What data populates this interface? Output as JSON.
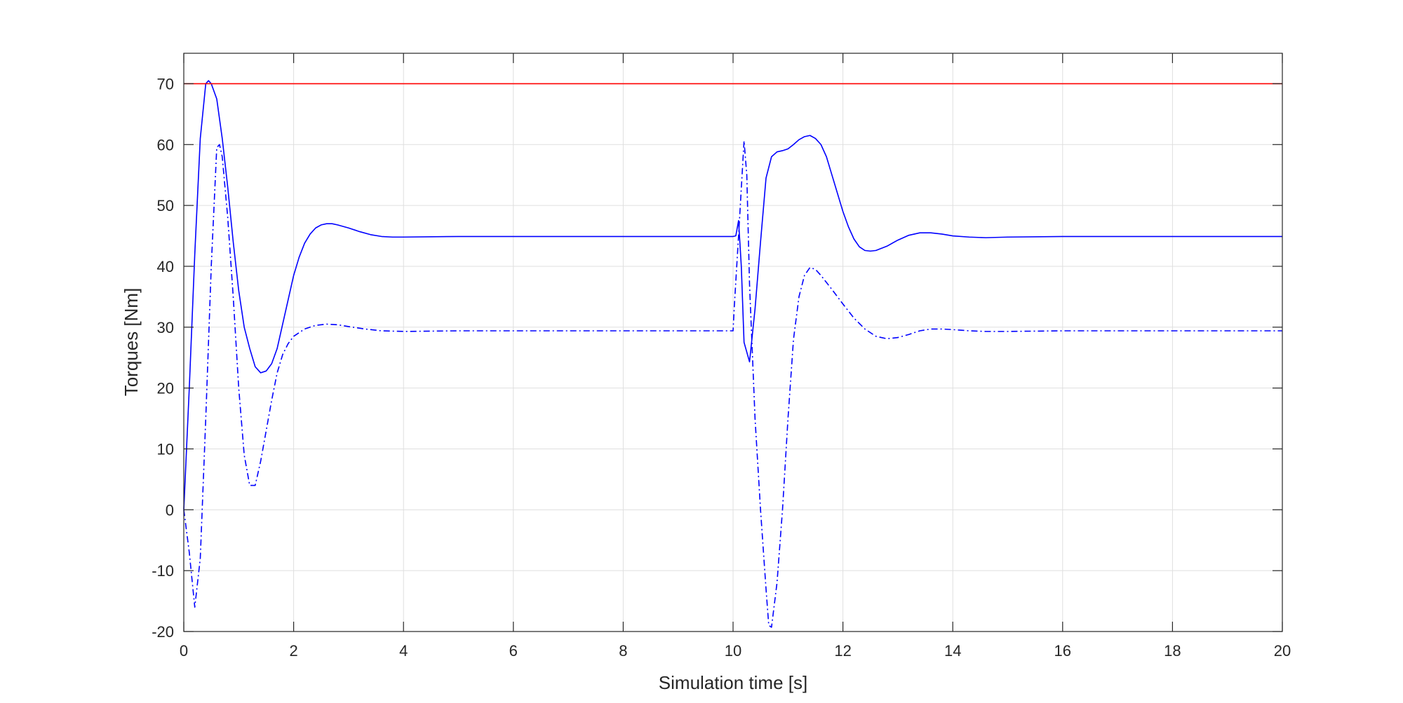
{
  "chart_data": {
    "type": "line",
    "title": "",
    "xlabel": "Simulation time [s]",
    "ylabel": "Torques [Nm]",
    "xlim": [
      0,
      20
    ],
    "ylim": [
      -20,
      75
    ],
    "xticks": [
      0,
      2,
      4,
      6,
      8,
      10,
      12,
      14,
      16,
      18,
      20
    ],
    "yticks": [
      -20,
      -10,
      0,
      10,
      20,
      30,
      40,
      50,
      60,
      70
    ],
    "grid": true,
    "legend": "none",
    "series": [
      {
        "style": "solid",
        "color": "#0000ff",
        "points": [
          [
            0,
            0
          ],
          [
            0.1,
            20
          ],
          [
            0.2,
            42
          ],
          [
            0.3,
            61
          ],
          [
            0.4,
            70
          ],
          [
            0.45,
            70.5
          ],
          [
            0.5,
            70
          ],
          [
            0.6,
            67.5
          ],
          [
            0.7,
            61
          ],
          [
            0.8,
            53
          ],
          [
            0.9,
            44
          ],
          [
            1.0,
            36
          ],
          [
            1.1,
            30
          ],
          [
            1.2,
            26.5
          ],
          [
            1.3,
            23.5
          ],
          [
            1.4,
            22.5
          ],
          [
            1.5,
            22.8
          ],
          [
            1.6,
            24
          ],
          [
            1.7,
            26.5
          ],
          [
            1.8,
            30.5
          ],
          [
            1.9,
            34.5
          ],
          [
            2.0,
            38.5
          ],
          [
            2.1,
            41.5
          ],
          [
            2.2,
            43.8
          ],
          [
            2.3,
            45.3
          ],
          [
            2.4,
            46.3
          ],
          [
            2.5,
            46.8
          ],
          [
            2.6,
            47
          ],
          [
            2.7,
            47
          ],
          [
            2.8,
            46.8
          ],
          [
            3.0,
            46.3
          ],
          [
            3.2,
            45.7
          ],
          [
            3.4,
            45.2
          ],
          [
            3.6,
            44.9
          ],
          [
            3.8,
            44.8
          ],
          [
            4.0,
            44.8
          ],
          [
            5,
            44.9
          ],
          [
            6,
            44.9
          ],
          [
            7,
            44.9
          ],
          [
            8,
            44.9
          ],
          [
            9,
            44.9
          ],
          [
            10.0,
            44.9
          ],
          [
            10.05,
            45
          ],
          [
            10.1,
            47.5
          ],
          [
            10.15,
            40
          ],
          [
            10.2,
            27.5
          ],
          [
            10.3,
            24.3
          ],
          [
            10.4,
            33
          ],
          [
            10.5,
            44
          ],
          [
            10.6,
            54.5
          ],
          [
            10.7,
            58
          ],
          [
            10.8,
            58.8
          ],
          [
            10.9,
            59
          ],
          [
            11.0,
            59.3
          ],
          [
            11.1,
            60
          ],
          [
            11.2,
            60.8
          ],
          [
            11.3,
            61.3
          ],
          [
            11.4,
            61.5
          ],
          [
            11.5,
            61
          ],
          [
            11.6,
            60
          ],
          [
            11.7,
            58
          ],
          [
            11.8,
            55
          ],
          [
            11.9,
            52
          ],
          [
            12.0,
            49
          ],
          [
            12.1,
            46.5
          ],
          [
            12.2,
            44.5
          ],
          [
            12.3,
            43.2
          ],
          [
            12.4,
            42.6
          ],
          [
            12.5,
            42.5
          ],
          [
            12.6,
            42.6
          ],
          [
            12.8,
            43.3
          ],
          [
            13.0,
            44.3
          ],
          [
            13.2,
            45.1
          ],
          [
            13.4,
            45.5
          ],
          [
            13.6,
            45.5
          ],
          [
            13.8,
            45.3
          ],
          [
            14.0,
            45
          ],
          [
            14.3,
            44.8
          ],
          [
            14.6,
            44.7
          ],
          [
            15.0,
            44.8
          ],
          [
            16,
            44.9
          ],
          [
            17,
            44.9
          ],
          [
            18,
            44.9
          ],
          [
            19,
            44.9
          ],
          [
            20,
            44.9
          ]
        ]
      },
      {
        "style": "dashdot",
        "color": "#0000ff",
        "points": [
          [
            0,
            0
          ],
          [
            0.1,
            -7
          ],
          [
            0.2,
            -16
          ],
          [
            0.3,
            -8
          ],
          [
            0.4,
            15
          ],
          [
            0.5,
            40
          ],
          [
            0.6,
            59.5
          ],
          [
            0.65,
            60
          ],
          [
            0.7,
            58
          ],
          [
            0.8,
            48
          ],
          [
            0.9,
            35
          ],
          [
            1.0,
            20
          ],
          [
            1.1,
            9
          ],
          [
            1.2,
            4
          ],
          [
            1.3,
            4
          ],
          [
            1.4,
            8
          ],
          [
            1.5,
            13
          ],
          [
            1.6,
            18
          ],
          [
            1.7,
            22.5
          ],
          [
            1.8,
            25.5
          ],
          [
            1.9,
            27.3
          ],
          [
            2.0,
            28.5
          ],
          [
            2.2,
            29.7
          ],
          [
            2.4,
            30.3
          ],
          [
            2.6,
            30.5
          ],
          [
            2.8,
            30.4
          ],
          [
            3.0,
            30.1
          ],
          [
            3.3,
            29.7
          ],
          [
            3.6,
            29.4
          ],
          [
            4.0,
            29.3
          ],
          [
            5,
            29.4
          ],
          [
            6,
            29.4
          ],
          [
            7,
            29.4
          ],
          [
            8,
            29.4
          ],
          [
            9,
            29.4
          ],
          [
            10.0,
            29.4
          ],
          [
            10.02,
            33
          ],
          [
            10.1,
            45
          ],
          [
            10.2,
            60.6
          ],
          [
            10.25,
            55
          ],
          [
            10.3,
            37
          ],
          [
            10.4,
            15
          ],
          [
            10.5,
            0
          ],
          [
            10.6,
            -13
          ],
          [
            10.65,
            -19
          ],
          [
            10.7,
            -19.3
          ],
          [
            10.8,
            -12
          ],
          [
            10.9,
            0
          ],
          [
            11.0,
            15
          ],
          [
            11.1,
            28
          ],
          [
            11.2,
            35
          ],
          [
            11.3,
            38.5
          ],
          [
            11.4,
            39.8
          ],
          [
            11.5,
            39.5
          ],
          [
            11.6,
            38.5
          ],
          [
            11.8,
            36.2
          ],
          [
            12.0,
            33.8
          ],
          [
            12.2,
            31.5
          ],
          [
            12.4,
            29.7
          ],
          [
            12.6,
            28.5
          ],
          [
            12.8,
            28.1
          ],
          [
            13.0,
            28.3
          ],
          [
            13.2,
            28.8
          ],
          [
            13.4,
            29.4
          ],
          [
            13.6,
            29.7
          ],
          [
            13.8,
            29.7
          ],
          [
            14.0,
            29.6
          ],
          [
            14.3,
            29.4
          ],
          [
            14.6,
            29.3
          ],
          [
            15.0,
            29.3
          ],
          [
            16,
            29.4
          ],
          [
            17,
            29.4
          ],
          [
            18,
            29.4
          ],
          [
            19,
            29.4
          ],
          [
            20,
            29.4
          ]
        ]
      },
      {
        "style": "solid",
        "color": "#ff0000",
        "points": [
          [
            0,
            70
          ],
          [
            20,
            70
          ]
        ]
      }
    ]
  }
}
